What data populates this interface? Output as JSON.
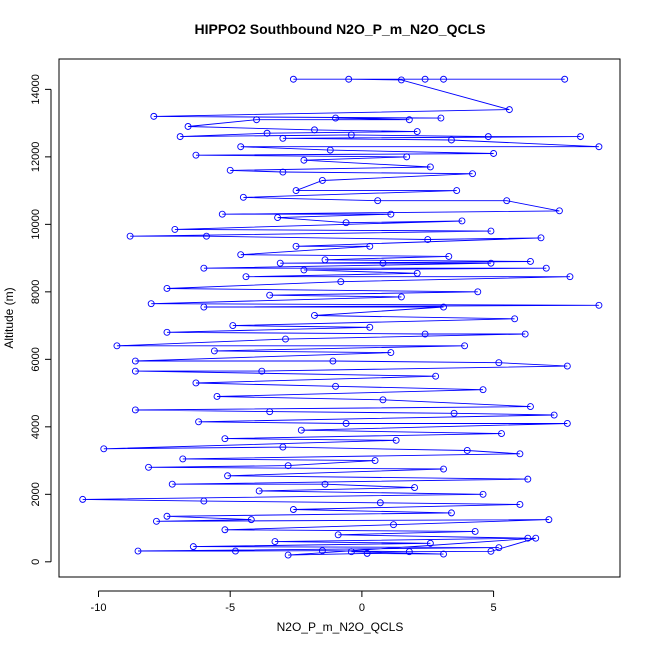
{
  "chart_data": {
    "type": "line",
    "title": "HIPPO2 Southbound N2O_P_m_N2O_QCLS",
    "xlabel": "N2O_P_m_N2O_QCLS",
    "ylabel": "Altitude (m)",
    "xlim": [
      -11.5,
      9.8
    ],
    "ylim": [
      -450,
      14900
    ],
    "x_ticks": [
      -10,
      -5,
      0,
      5
    ],
    "y_ticks": [
      0,
      2000,
      4000,
      6000,
      8000,
      10000,
      12000,
      14000
    ],
    "x_tick_labels": [
      "-10",
      "-5",
      "0",
      "5"
    ],
    "y_tick_labels": [
      "0",
      "2000",
      "4000",
      "6000",
      "8000",
      "10000",
      "12000",
      "14000"
    ],
    "grid": false,
    "legend": "none",
    "series": [
      {
        "color": "#0000ff",
        "marker": "open-circle",
        "points": [
          [
            -2.6,
            14300
          ],
          [
            2.4,
            14300
          ],
          [
            7.7,
            14300
          ],
          [
            3.1,
            14300
          ],
          [
            -0.5,
            14300
          ],
          [
            1.5,
            14280
          ],
          [
            5.6,
            13400
          ],
          [
            -7.9,
            13200
          ],
          [
            3.0,
            13150
          ],
          [
            -1.0,
            13150
          ],
          [
            1.8,
            13100
          ],
          [
            -4.0,
            13100
          ],
          [
            -6.6,
            12900
          ],
          [
            -1.8,
            12800
          ],
          [
            2.1,
            12750
          ],
          [
            -3.6,
            12700
          ],
          [
            -6.9,
            12600
          ],
          [
            -0.4,
            12650
          ],
          [
            4.8,
            12600
          ],
          [
            8.3,
            12600
          ],
          [
            -3.0,
            12550
          ],
          [
            3.4,
            12500
          ],
          [
            9.0,
            12300
          ],
          [
            -4.6,
            12300
          ],
          [
            -1.2,
            12200
          ],
          [
            5.0,
            12100
          ],
          [
            -6.3,
            12050
          ],
          [
            1.7,
            12000
          ],
          [
            -2.2,
            11900
          ],
          [
            2.6,
            11700
          ],
          [
            -5.0,
            11600
          ],
          [
            -3.0,
            11550
          ],
          [
            4.2,
            11500
          ],
          [
            -1.5,
            11300
          ],
          [
            -2.5,
            11000
          ],
          [
            3.6,
            11000
          ],
          [
            -4.5,
            10800
          ],
          [
            0.6,
            10700
          ],
          [
            5.5,
            10700
          ],
          [
            7.5,
            10400
          ],
          [
            -5.3,
            10300
          ],
          [
            1.1,
            10300
          ],
          [
            -3.2,
            10200
          ],
          [
            -0.6,
            10050
          ],
          [
            3.8,
            10100
          ],
          [
            -7.1,
            9850
          ],
          [
            4.9,
            9800
          ],
          [
            -8.8,
            9650
          ],
          [
            -5.9,
            9650
          ],
          [
            2.5,
            9550
          ],
          [
            6.8,
            9600
          ],
          [
            -2.5,
            9350
          ],
          [
            0.3,
            9350
          ],
          [
            -4.6,
            9100
          ],
          [
            3.3,
            9050
          ],
          [
            -1.4,
            8950
          ],
          [
            6.4,
            8900
          ],
          [
            -3.1,
            8850
          ],
          [
            0.8,
            8850
          ],
          [
            4.9,
            8850
          ],
          [
            -6.0,
            8700
          ],
          [
            7.0,
            8700
          ],
          [
            -2.2,
            8650
          ],
          [
            2.1,
            8550
          ],
          [
            -4.4,
            8450
          ],
          [
            7.9,
            8450
          ],
          [
            -0.8,
            8300
          ],
          [
            -7.4,
            8100
          ],
          [
            4.4,
            8000
          ],
          [
            -3.5,
            7900
          ],
          [
            1.5,
            7850
          ],
          [
            -8.0,
            7650
          ],
          [
            9.0,
            7600
          ],
          [
            -6.0,
            7550
          ],
          [
            3.1,
            7550
          ],
          [
            -1.8,
            7300
          ],
          [
            5.8,
            7200
          ],
          [
            -4.9,
            7000
          ],
          [
            0.3,
            6950
          ],
          [
            -7.4,
            6800
          ],
          [
            2.4,
            6750
          ],
          [
            6.2,
            6750
          ],
          [
            -2.9,
            6600
          ],
          [
            -9.3,
            6400
          ],
          [
            3.9,
            6400
          ],
          [
            -5.6,
            6250
          ],
          [
            1.1,
            6200
          ],
          [
            -8.6,
            5950
          ],
          [
            -1.1,
            5950
          ],
          [
            5.2,
            5900
          ],
          [
            7.8,
            5800
          ],
          [
            -3.8,
            5650
          ],
          [
            -8.6,
            5650
          ],
          [
            2.8,
            5500
          ],
          [
            -6.3,
            5300
          ],
          [
            -1.0,
            5200
          ],
          [
            4.6,
            5100
          ],
          [
            -5.5,
            4900
          ],
          [
            0.8,
            4800
          ],
          [
            6.4,
            4600
          ],
          [
            -8.6,
            4500
          ],
          [
            -3.5,
            4450
          ],
          [
            3.5,
            4400
          ],
          [
            7.3,
            4350
          ],
          [
            -6.2,
            4150
          ],
          [
            -0.6,
            4100
          ],
          [
            7.8,
            4100
          ],
          [
            -2.3,
            3900
          ],
          [
            5.3,
            3800
          ],
          [
            -5.2,
            3650
          ],
          [
            1.3,
            3600
          ],
          [
            -9.8,
            3350
          ],
          [
            -3.0,
            3400
          ],
          [
            4.0,
            3300
          ],
          [
            6.0,
            3200
          ],
          [
            -6.8,
            3050
          ],
          [
            0.5,
            3000
          ],
          [
            -2.8,
            2850
          ],
          [
            -8.1,
            2800
          ],
          [
            3.1,
            2750
          ],
          [
            -5.1,
            2550
          ],
          [
            6.3,
            2450
          ],
          [
            -7.2,
            2300
          ],
          [
            -1.4,
            2300
          ],
          [
            2.0,
            2200
          ],
          [
            -3.9,
            2100
          ],
          [
            4.6,
            2000
          ],
          [
            -10.6,
            1850
          ],
          [
            -6.0,
            1800
          ],
          [
            0.7,
            1750
          ],
          [
            6.0,
            1700
          ],
          [
            -2.6,
            1550
          ],
          [
            3.4,
            1450
          ],
          [
            -7.4,
            1350
          ],
          [
            -4.2,
            1250
          ],
          [
            -7.8,
            1200
          ],
          [
            7.1,
            1250
          ],
          [
            1.2,
            1100
          ],
          [
            -5.2,
            950
          ],
          [
            4.3,
            900
          ],
          [
            -0.9,
            800
          ],
          [
            6.3,
            700
          ],
          [
            -3.3,
            600
          ],
          [
            2.6,
            550
          ],
          [
            -6.4,
            450
          ],
          [
            5.2,
            420
          ],
          [
            -8.5,
            320
          ],
          [
            -4.8,
            320
          ],
          [
            -1.5,
            330
          ],
          [
            1.8,
            300
          ],
          [
            4.9,
            310
          ],
          [
            6.6,
            700
          ],
          [
            -2.8,
            200
          ],
          [
            0.2,
            250
          ],
          [
            3.1,
            230
          ],
          [
            -0.4,
            300
          ]
        ]
      }
    ]
  }
}
